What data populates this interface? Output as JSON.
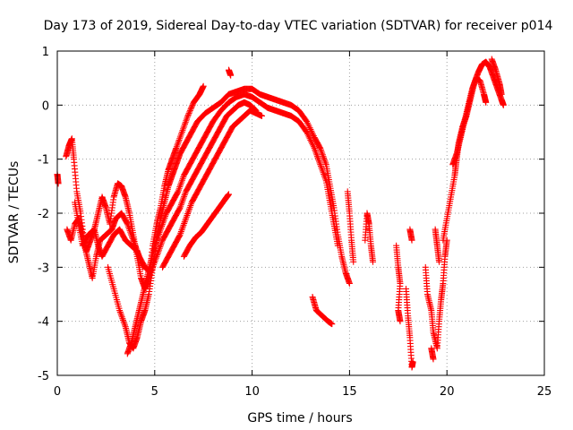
{
  "chart_data": {
    "type": "scatter",
    "title": "Day 173 of 2019, Sidereal Day-to-day VTEC variation (SDTVAR) for receiver p014",
    "xlabel": "GPS time / hours",
    "ylabel": "SDTVAR / TECUs",
    "xlim": [
      0,
      25
    ],
    "ylim": [
      -5,
      1
    ],
    "xticks": [
      0,
      5,
      10,
      15,
      20,
      25
    ],
    "yticks": [
      -5,
      -4,
      -3,
      -2,
      -1,
      0,
      1
    ],
    "xtick_labels": [
      "0",
      "5",
      "10",
      "15",
      "20",
      "25"
    ],
    "ytick_labels": [
      "-5",
      "-4",
      "-3",
      "-2",
      "-1",
      "0",
      "1"
    ],
    "grid": true,
    "marker": "+",
    "series": [
      {
        "name": "SDTVAR",
        "color": "#ff0000",
        "tracks": [
          [
            [
              0.0,
              -1.28
            ],
            [
              0.05,
              -1.45
            ]
          ],
          [
            [
              0.45,
              -0.95
            ],
            [
              0.6,
              -0.75
            ],
            [
              0.75,
              -0.62
            ],
            [
              0.85,
              -1.0
            ],
            [
              1.0,
              -1.6
            ],
            [
              1.2,
              -2.0
            ],
            [
              1.4,
              -2.6
            ],
            [
              1.6,
              -2.9
            ],
            [
              1.8,
              -3.2
            ],
            [
              2.0,
              -2.8
            ],
            [
              2.2,
              -2.5
            ],
            [
              2.5,
              -2.4
            ],
            [
              2.8,
              -2.3
            ],
            [
              3.0,
              -2.1
            ],
            [
              3.3,
              -2.0
            ],
            [
              3.6,
              -2.2
            ],
            [
              3.9,
              -2.5
            ],
            [
              4.2,
              -2.8
            ],
            [
              4.5,
              -3.0
            ],
            [
              4.8,
              -3.1
            ]
          ],
          [
            [
              0.5,
              -2.3
            ],
            [
              0.7,
              -2.5
            ],
            [
              0.9,
              -2.2
            ],
            [
              1.1,
              -2.1
            ],
            [
              1.3,
              -2.4
            ],
            [
              1.5,
              -2.7
            ],
            [
              1.7,
              -2.5
            ],
            [
              1.9,
              -2.3
            ],
            [
              2.1,
              -2.6
            ],
            [
              2.3,
              -2.8
            ],
            [
              2.6,
              -2.6
            ],
            [
              2.9,
              -2.4
            ],
            [
              3.2,
              -2.3
            ],
            [
              3.5,
              -2.5
            ],
            [
              3.8,
              -2.6
            ],
            [
              4.1,
              -2.7
            ],
            [
              4.4,
              -3.0
            ]
          ],
          [
            [
              0.9,
              -1.8
            ],
            [
              1.1,
              -2.2
            ],
            [
              1.3,
              -2.6
            ],
            [
              1.6,
              -2.4
            ],
            [
              1.9,
              -2.3
            ],
            [
              2.1,
              -2.0
            ],
            [
              2.3,
              -1.7
            ],
            [
              2.5,
              -1.9
            ],
            [
              2.7,
              -2.2
            ],
            [
              2.9,
              -1.7
            ],
            [
              3.1,
              -1.45
            ],
            [
              3.3,
              -1.5
            ],
            [
              3.5,
              -1.7
            ],
            [
              3.7,
              -2.0
            ],
            [
              3.9,
              -2.4
            ],
            [
              4.1,
              -2.8
            ],
            [
              4.3,
              -3.2
            ],
            [
              4.5,
              -3.4
            ],
            [
              4.7,
              -3.2
            ],
            [
              4.9,
              -2.6
            ],
            [
              5.1,
              -2.2
            ],
            [
              5.3,
              -1.9
            ],
            [
              5.5,
              -1.5
            ],
            [
              5.7,
              -1.2
            ],
            [
              5.9,
              -1.0
            ],
            [
              6.1,
              -0.8
            ],
            [
              6.4,
              -0.5
            ],
            [
              6.7,
              -0.2
            ],
            [
              7.0,
              0.05
            ],
            [
              7.3,
              0.2
            ],
            [
              7.5,
              0.35
            ]
          ],
          [
            [
              2.6,
              -3.0
            ],
            [
              2.9,
              -3.4
            ],
            [
              3.2,
              -3.8
            ],
            [
              3.5,
              -4.1
            ],
            [
              3.7,
              -4.4
            ],
            [
              3.9,
              -4.5
            ],
            [
              4.1,
              -4.3
            ],
            [
              4.3,
              -4.0
            ],
            [
              4.5,
              -3.8
            ],
            [
              4.7,
              -3.5
            ],
            [
              4.9,
              -3.0
            ],
            [
              5.1,
              -2.5
            ],
            [
              5.3,
              -2.1
            ],
            [
              5.5,
              -1.8
            ],
            [
              5.7,
              -1.5
            ],
            [
              5.9,
              -1.3
            ],
            [
              6.1,
              -1.1
            ],
            [
              6.3,
              -0.9
            ],
            [
              6.6,
              -0.7
            ],
            [
              6.9,
              -0.5
            ],
            [
              7.2,
              -0.3
            ],
            [
              7.6,
              -0.15
            ],
            [
              8.0,
              -0.05
            ],
            [
              8.4,
              0.05
            ],
            [
              8.8,
              0.2
            ],
            [
              9.2,
              0.25
            ],
            [
              9.6,
              0.3
            ],
            [
              10.0,
              0.3
            ],
            [
              10.4,
              0.2
            ],
            [
              10.8,
              0.15
            ],
            [
              11.2,
              0.1
            ],
            [
              11.6,
              0.05
            ],
            [
              12.0,
              0.0
            ],
            [
              12.4,
              -0.1
            ],
            [
              12.8,
              -0.3
            ],
            [
              13.2,
              -0.6
            ],
            [
              13.5,
              -0.8
            ],
            [
              13.8,
              -1.1
            ],
            [
              14.0,
              -1.5
            ],
            [
              14.2,
              -1.9
            ],
            [
              14.4,
              -2.4
            ],
            [
              14.6,
              -2.8
            ],
            [
              14.8,
              -3.1
            ],
            [
              15.0,
              -3.3
            ]
          ],
          [
            [
              3.6,
              -4.6
            ],
            [
              3.8,
              -4.4
            ],
            [
              4.0,
              -4.1
            ],
            [
              4.2,
              -3.8
            ],
            [
              4.4,
              -3.5
            ],
            [
              4.6,
              -3.2
            ],
            [
              4.8,
              -2.9
            ],
            [
              5.0,
              -2.6
            ],
            [
              5.3,
              -2.3
            ],
            [
              5.6,
              -2.0
            ],
            [
              5.9,
              -1.8
            ],
            [
              6.2,
              -1.6
            ],
            [
              6.5,
              -1.3
            ],
            [
              6.8,
              -1.1
            ],
            [
              7.1,
              -0.9
            ],
            [
              7.4,
              -0.7
            ],
            [
              7.7,
              -0.5
            ],
            [
              8.0,
              -0.3
            ],
            [
              8.4,
              -0.1
            ],
            [
              8.8,
              0.05
            ],
            [
              9.2,
              0.15
            ],
            [
              9.6,
              0.2
            ],
            [
              10.0,
              0.15
            ],
            [
              10.4,
              0.05
            ],
            [
              10.8,
              -0.05
            ],
            [
              11.2,
              -0.1
            ],
            [
              11.6,
              -0.15
            ],
            [
              12.0,
              -0.2
            ],
            [
              12.4,
              -0.3
            ],
            [
              12.8,
              -0.5
            ],
            [
              13.2,
              -0.8
            ],
            [
              13.5,
              -1.1
            ],
            [
              13.8,
              -1.4
            ],
            [
              14.0,
              -1.8
            ],
            [
              14.2,
              -2.2
            ],
            [
              14.4,
              -2.6
            ]
          ],
          [
            [
              4.5,
              -3.4
            ],
            [
              4.8,
              -3.1
            ],
            [
              5.1,
              -2.8
            ],
            [
              5.4,
              -2.5
            ],
            [
              5.7,
              -2.3
            ],
            [
              6.0,
              -2.1
            ],
            [
              6.3,
              -1.9
            ],
            [
              6.6,
              -1.6
            ],
            [
              6.9,
              -1.4
            ],
            [
              7.2,
              -1.2
            ],
            [
              7.5,
              -1.0
            ],
            [
              7.8,
              -0.8
            ],
            [
              8.1,
              -0.6
            ],
            [
              8.4,
              -0.4
            ],
            [
              8.7,
              -0.2
            ],
            [
              9.0,
              -0.1
            ],
            [
              9.3,
              0.0
            ],
            [
              9.6,
              0.05
            ],
            [
              9.9,
              0.0
            ],
            [
              10.2,
              -0.1
            ]
          ],
          [
            [
              5.4,
              -3.0
            ],
            [
              5.7,
              -2.8
            ],
            [
              6.0,
              -2.6
            ],
            [
              6.3,
              -2.4
            ],
            [
              6.6,
              -2.1
            ],
            [
              6.9,
              -1.8
            ],
            [
              7.2,
              -1.6
            ],
            [
              7.5,
              -1.4
            ],
            [
              7.8,
              -1.2
            ],
            [
              8.1,
              -1.0
            ],
            [
              8.4,
              -0.8
            ],
            [
              8.7,
              -0.6
            ],
            [
              9.0,
              -0.4
            ],
            [
              9.3,
              -0.3
            ],
            [
              9.6,
              -0.2
            ],
            [
              9.9,
              -0.1
            ],
            [
              10.2,
              -0.15
            ],
            [
              10.5,
              -0.2
            ]
          ],
          [
            [
              6.5,
              -2.8
            ],
            [
              6.8,
              -2.6
            ],
            [
              7.1,
              -2.45
            ],
            [
              7.4,
              -2.35
            ],
            [
              7.7,
              -2.2
            ],
            [
              8.0,
              -2.05
            ],
            [
              8.3,
              -1.9
            ],
            [
              8.6,
              -1.75
            ],
            [
              8.8,
              -1.65
            ]
          ],
          [
            [
              8.8,
              0.65
            ],
            [
              8.9,
              0.55
            ]
          ],
          [
            [
              13.1,
              -3.55
            ],
            [
              13.3,
              -3.8
            ],
            [
              13.6,
              -3.9
            ],
            [
              13.9,
              -4.0
            ],
            [
              14.1,
              -4.05
            ]
          ],
          [
            [
              14.9,
              -1.6
            ],
            [
              15.0,
              -2.0
            ],
            [
              15.1,
              -2.5
            ],
            [
              15.2,
              -2.9
            ]
          ],
          [
            [
              15.8,
              -2.5
            ],
            [
              15.9,
              -2.0
            ],
            [
              16.0,
              -2.2
            ],
            [
              16.1,
              -2.6
            ],
            [
              16.2,
              -2.9
            ]
          ],
          [
            [
              17.4,
              -2.6
            ],
            [
              17.5,
              -3.0
            ],
            [
              17.6,
              -3.3
            ],
            [
              17.5,
              -3.8
            ],
            [
              17.6,
              -4.0
            ]
          ],
          [
            [
              18.1,
              -2.3
            ],
            [
              18.2,
              -2.5
            ]
          ],
          [
            [
              17.9,
              -3.4
            ],
            [
              18.0,
              -3.9
            ],
            [
              18.1,
              -4.3
            ],
            [
              18.2,
              -4.85
            ],
            [
              18.25,
              -4.75
            ]
          ],
          [
            [
              18.9,
              -3.0
            ],
            [
              19.0,
              -3.5
            ],
            [
              19.2,
              -3.8
            ],
            [
              19.3,
              -4.2
            ],
            [
              19.5,
              -4.5
            ],
            [
              19.6,
              -4.0
            ],
            [
              19.7,
              -3.6
            ],
            [
              19.8,
              -3.3
            ],
            [
              19.9,
              -2.8
            ],
            [
              20.0,
              -2.5
            ]
          ],
          [
            [
              19.4,
              -2.3
            ],
            [
              19.5,
              -2.6
            ],
            [
              19.6,
              -2.9
            ]
          ],
          [
            [
              19.2,
              -4.5
            ],
            [
              19.3,
              -4.7
            ]
          ],
          [
            [
              19.8,
              -2.5
            ],
            [
              20.0,
              -2.1
            ],
            [
              20.2,
              -1.7
            ],
            [
              20.4,
              -1.3
            ],
            [
              20.5,
              -1.0
            ],
            [
              20.6,
              -0.7
            ],
            [
              20.8,
              -0.4
            ],
            [
              21.0,
              -0.2
            ],
            [
              21.2,
              0.1
            ],
            [
              21.4,
              0.4
            ],
            [
              21.6,
              0.6
            ],
            [
              21.8,
              0.75
            ],
            [
              22.0,
              0.8
            ],
            [
              22.2,
              0.7
            ],
            [
              22.4,
              0.5
            ],
            [
              22.6,
              0.3
            ],
            [
              22.8,
              0.1
            ],
            [
              22.9,
              0.0
            ]
          ],
          [
            [
              20.3,
              -1.1
            ],
            [
              20.5,
              -0.9
            ],
            [
              20.7,
              -0.6
            ],
            [
              20.9,
              -0.3
            ],
            [
              21.1,
              0.0
            ],
            [
              21.3,
              0.3
            ],
            [
              21.5,
              0.5
            ],
            [
              21.7,
              0.45
            ],
            [
              21.9,
              0.2
            ],
            [
              22.0,
              0.05
            ]
          ],
          [
            [
              22.3,
              0.85
            ],
            [
              22.5,
              0.65
            ],
            [
              22.7,
              0.4
            ],
            [
              22.8,
              0.2
            ]
          ]
        ]
      }
    ]
  }
}
